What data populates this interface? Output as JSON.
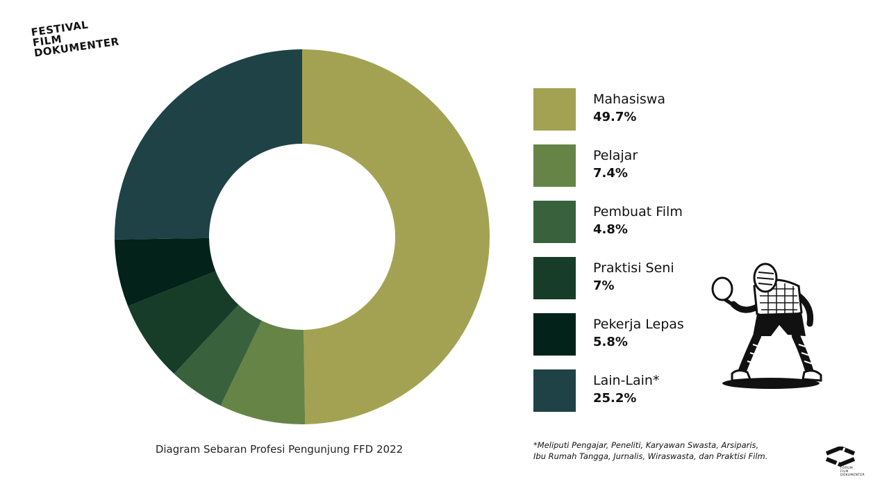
{
  "logo": {
    "lines": [
      "FESTIVAL",
      "FILM",
      "DOKUMENTER"
    ]
  },
  "chart_data": {
    "type": "pie",
    "title": "",
    "caption": "Diagram Sebaran Profesi Pengunjung FFD 2022",
    "categories": [
      "Mahasiswa",
      "Pelajar",
      "Pembuat Film",
      "Praktisi Seni",
      "Pekerja Lepas",
      "Lain-Lain*"
    ],
    "values": [
      49.7,
      7.4,
      4.8,
      7,
      5.8,
      25.2
    ],
    "value_labels": [
      "49.7%",
      "7.4%",
      "4.8%",
      "7%",
      "5.8%",
      "25.2%"
    ],
    "colors": [
      "#a3a252",
      "#678447",
      "#38613c",
      "#173d29",
      "#02221a",
      "#1e4245"
    ],
    "unit": "%",
    "legend": "right",
    "donut": true
  },
  "footnote": {
    "line1": "*Meliputi Pengajar, Peneliti, Karyawan Swasta, Arsiparis,",
    "line2": "Ibu Rumah Tangga, Jurnalis, Wiraswasta, dan Praktisi Film."
  },
  "brand": {
    "lines": [
      "FORUM",
      "FILM",
      "DOKUMENTER"
    ]
  },
  "icons": {
    "mascot": "table-tennis-player-icon",
    "brand_mark": "forum-film-dokumenter-logo-icon"
  }
}
